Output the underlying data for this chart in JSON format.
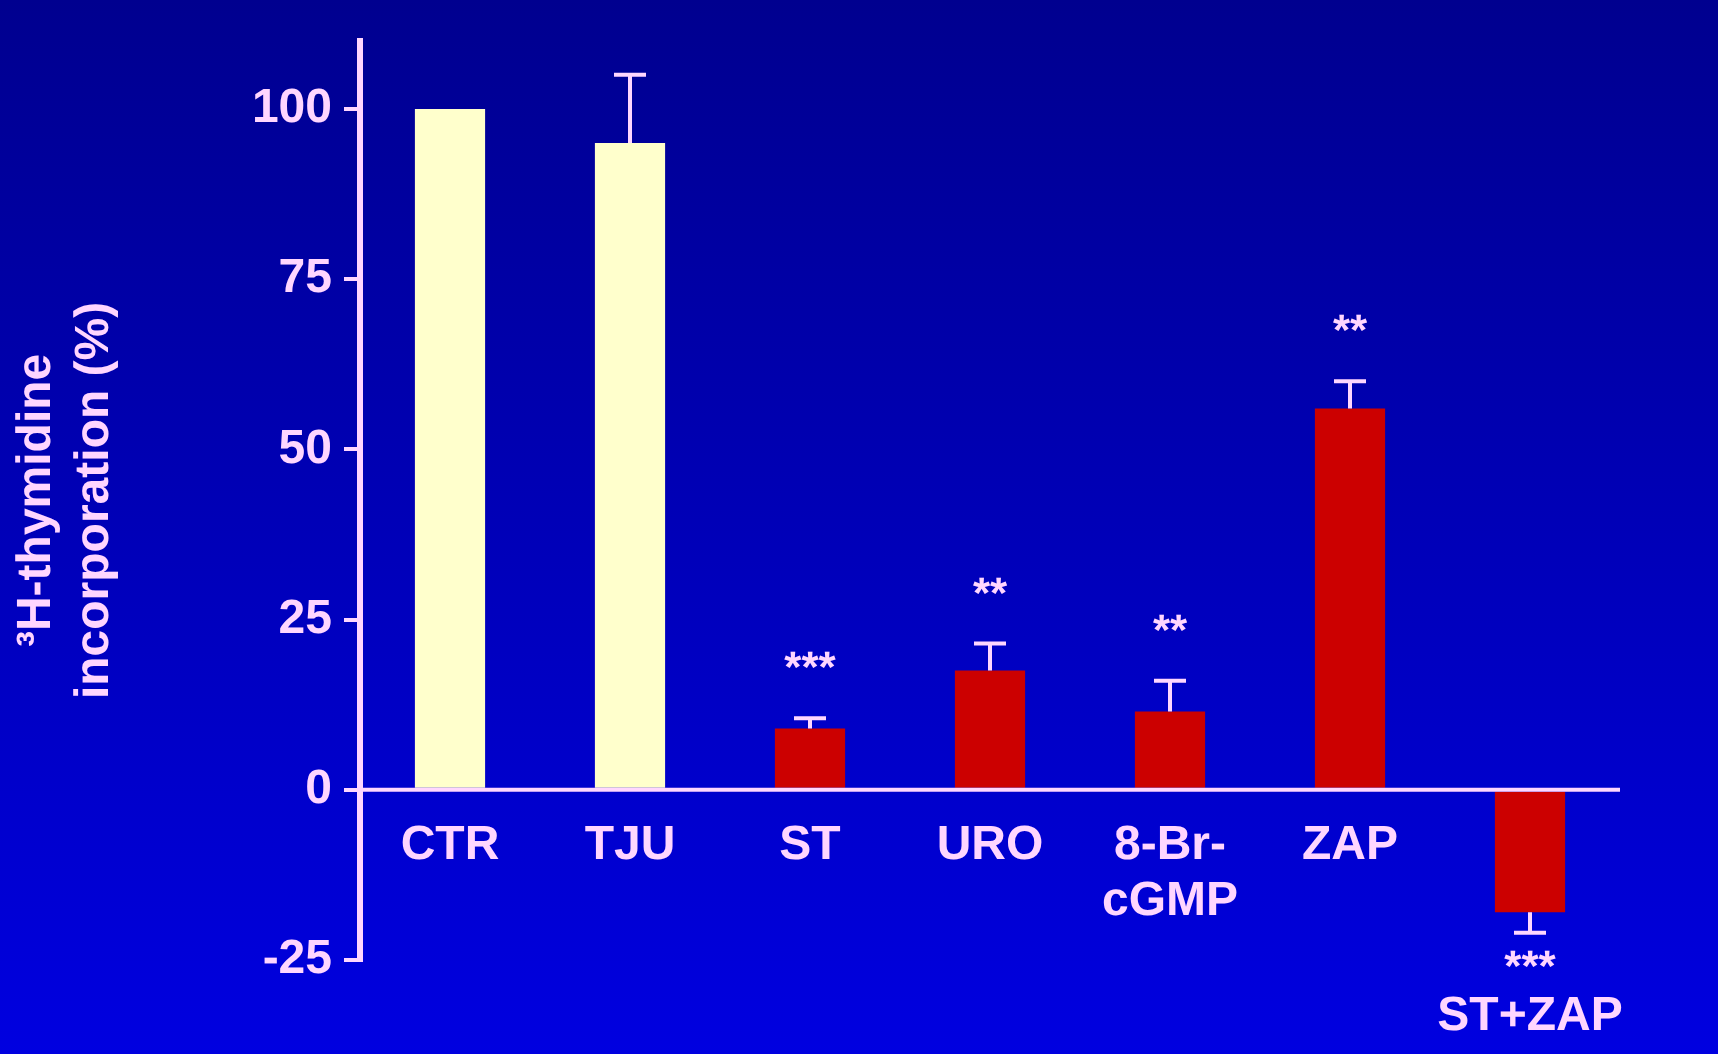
{
  "chart_data": {
    "type": "bar",
    "ylabel": "³H-thymidine incorporation (%)",
    "categories": [
      "CTR",
      "TJU",
      "ST",
      "URO",
      "8-Br-cGMP",
      "ZAP",
      "ST+ZAP"
    ],
    "values": [
      100,
      95,
      9,
      17.5,
      11.5,
      56,
      -18
    ],
    "colors": [
      "#ffffcc",
      "#ffffcc",
      "#cc0000",
      "#cc0000",
      "#cc0000",
      "#cc0000",
      "#cc0000"
    ],
    "errors": [
      null,
      [
        95,
        105
      ],
      [
        9,
        10.5
      ],
      [
        17.5,
        21.5
      ],
      [
        11.5,
        16
      ],
      [
        56,
        60
      ],
      [
        -21,
        -18
      ]
    ],
    "ylim": [
      -25,
      110
    ],
    "yticks": [
      100,
      75,
      50,
      25,
      0,
      -25
    ],
    "grid": false,
    "legend": false,
    "annotations": [
      {
        "text": "***",
        "x": "ST",
        "y": 9
      },
      {
        "text": "**",
        "x": "URO",
        "y": 17.5
      },
      {
        "text": "**",
        "x": "8-Br-cGMP",
        "y": 11.5
      },
      {
        "text": "**",
        "x": "ZAP",
        "y": 56
      },
      {
        "text": "***",
        "x": "ST+ZAP",
        "y": -18
      }
    ]
  }
}
